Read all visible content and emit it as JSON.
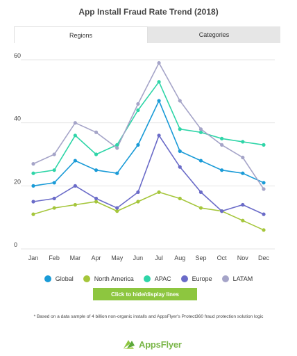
{
  "title": "App Install Fraud Rate Trend (2018)",
  "tabs": [
    {
      "label": "Regions",
      "active": true
    },
    {
      "label": "Categories",
      "active": false
    }
  ],
  "toggle_button": "Click to hide/display lines",
  "footnote": "* Based on a data sample of 4 billion non-organic installs and AppsFlyer's Protect360 fraud protection solution logic",
  "logo": {
    "text": "AppsFlyer"
  },
  "chart_data": {
    "type": "line",
    "title": "App Install Fraud Rate Trend (2018)",
    "categories": [
      "Jan",
      "Feb",
      "Mar",
      "Apr",
      "May",
      "Jun",
      "Jul",
      "Aug",
      "Sep",
      "Oct",
      "Nov",
      "Dec"
    ],
    "ylim": [
      0,
      60
    ],
    "yticks": [
      0,
      20,
      40,
      60
    ],
    "grid": true,
    "legend": "bottom",
    "series": [
      {
        "name": "Global",
        "color": "#1a9bd7",
        "values": [
          20,
          21,
          28,
          25,
          24,
          33,
          47,
          31,
          28,
          25,
          24,
          21
        ]
      },
      {
        "name": "North America",
        "color": "#a5c63b",
        "values": [
          11,
          13,
          14,
          15,
          12,
          15,
          18,
          16,
          13,
          12,
          9,
          6
        ]
      },
      {
        "name": "APAC",
        "color": "#2fd5a8",
        "values": [
          24,
          25,
          36,
          30,
          33,
          44,
          53,
          38,
          37,
          35,
          34,
          33
        ]
      },
      {
        "name": "Europe",
        "color": "#6a6bc8",
        "values": [
          15,
          16,
          20,
          16,
          13,
          18,
          36,
          26,
          18,
          12,
          14,
          11
        ]
      },
      {
        "name": "LATAM",
        "color": "#a5a4c8",
        "values": [
          27,
          30,
          40,
          37,
          32,
          46,
          59,
          47,
          38,
          33,
          29,
          19
        ]
      }
    ]
  }
}
